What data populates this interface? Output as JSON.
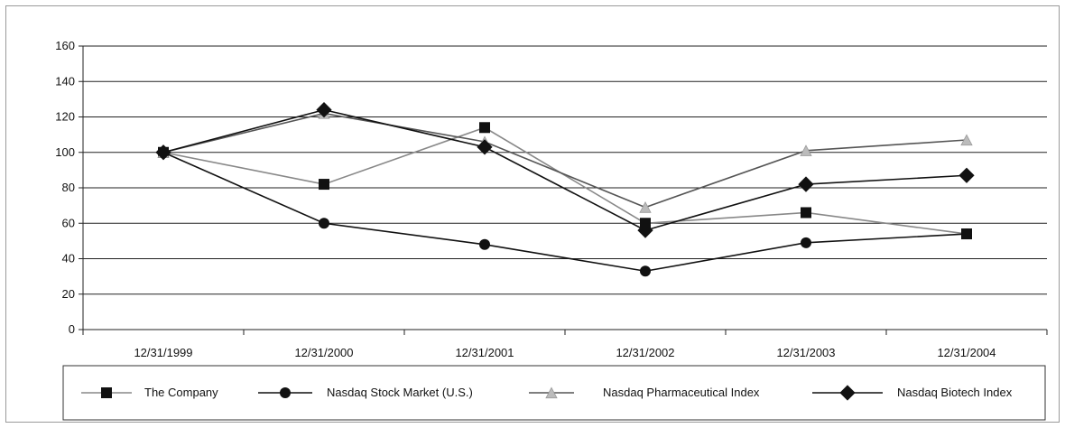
{
  "chart_data": {
    "type": "line",
    "categories": [
      "12/31/1999",
      "12/31/2000",
      "12/31/2001",
      "12/31/2002",
      "12/31/2003",
      "12/31/2004"
    ],
    "ylim": [
      0,
      160
    ],
    "yticks": [
      0,
      20,
      40,
      60,
      80,
      100,
      120,
      140,
      160
    ],
    "grid": true,
    "legend_position": "bottom",
    "series": [
      {
        "name": "The Company",
        "values": [
          100,
          82,
          114,
          60,
          66,
          54
        ],
        "marker": "square",
        "line_color": "#888888",
        "marker_color": "#111111"
      },
      {
        "name": "Nasdaq Stock Market (U.S.)",
        "values": [
          100,
          60,
          48,
          33,
          49,
          54
        ],
        "marker": "circle",
        "line_color": "#111111",
        "marker_color": "#111111"
      },
      {
        "name": "Nasdaq Pharmaceutical Index",
        "values": [
          100,
          122,
          106,
          69,
          101,
          107
        ],
        "marker": "triangle",
        "line_color": "#555555",
        "marker_color": "#bbbbbb"
      },
      {
        "name": "Nasdaq Biotech Index",
        "values": [
          100,
          124,
          103,
          56,
          82,
          87
        ],
        "marker": "diamond",
        "line_color": "#111111",
        "marker_color": "#111111"
      }
    ]
  }
}
